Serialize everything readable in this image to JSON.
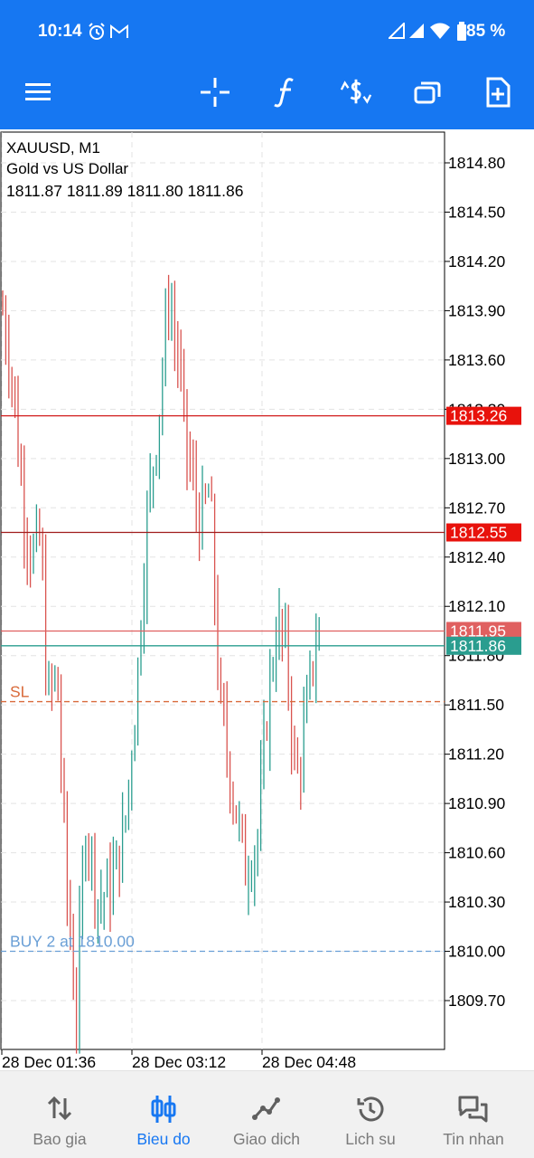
{
  "status_bar": {
    "time": "10:14",
    "battery": "85 %",
    "icons": [
      "alarm-icon",
      "gmail-icon",
      "signal-icon",
      "signal-icon",
      "wifi-icon",
      "battery-icon"
    ]
  },
  "toolbar": {
    "icons": [
      "menu-icon",
      "crosshair-icon",
      "function-icon",
      "trade-dollar-icon",
      "windows-icon",
      "new-document-icon"
    ],
    "color": "#1677f2"
  },
  "chart": {
    "symbol_line": "XAUUSD, M1",
    "description": "Gold vs US Dollar",
    "ohlc": "1811.87 1811.89 1811.80 1811.86",
    "sl_label": "SL",
    "buy_label": "BUY 2 at 1810.00",
    "badges": {
      "red_high": "1813.26",
      "red_mid": "1812.55",
      "ask": "1811.95",
      "bid": "1811.86"
    }
  },
  "chart_data": {
    "type": "candlestick",
    "symbol": "XAUUSD",
    "timeframe": "M1",
    "y_ticks": [
      "1814.80",
      "1814.50",
      "1814.20",
      "1813.90",
      "1813.60",
      "1813.30",
      "1813.00",
      "1812.70",
      "1812.40",
      "1812.10",
      "1811.80",
      "1811.50",
      "1811.20",
      "1810.90",
      "1810.60",
      "1810.30",
      "1810.00",
      "1809.70"
    ],
    "y_tick_values": [
      1814.8,
      1814.5,
      1814.2,
      1813.9,
      1813.6,
      1813.3,
      1813.0,
      1812.7,
      1812.4,
      1812.1,
      1811.8,
      1811.5,
      1811.2,
      1810.9,
      1810.6,
      1810.3,
      1810.0,
      1809.7
    ],
    "x_ticks": [
      "28 Dec 01:36",
      "28 Dec 03:12",
      "28 Dec 04:48"
    ],
    "ylim": [
      1809.45,
      1815.0
    ],
    "grid": true,
    "horizontal_lines": [
      {
        "value": 1813.26,
        "style": "solid",
        "color": "#d21c1c",
        "label": "1813.26"
      },
      {
        "value": 1812.55,
        "style": "solid",
        "color": "#a01c1c",
        "label": "1812.55"
      },
      {
        "value": 1811.95,
        "style": "solid",
        "color": "#e06060",
        "label": "1811.95"
      },
      {
        "value": 1811.86,
        "style": "solid",
        "color": "#2a9d8f",
        "label": "1811.86"
      },
      {
        "value": 1811.52,
        "style": "dashed",
        "color": "#d96a3a",
        "label": "SL"
      },
      {
        "value": 1810.0,
        "style": "dashed",
        "color": "#6a9fd6",
        "label": "BUY 2 at 1810.00"
      }
    ],
    "price_path": [
      [
        0,
        1813.9
      ],
      [
        0.03,
        1813.5
      ],
      [
        0.06,
        1812.8
      ],
      [
        0.09,
        1812.4
      ],
      [
        0.12,
        1812.5
      ],
      [
        0.14,
        1811.5
      ],
      [
        0.17,
        1811.7
      ],
      [
        0.2,
        1810.4
      ],
      [
        0.23,
        1809.6
      ],
      [
        0.26,
        1810.8
      ],
      [
        0.3,
        1810.3
      ],
      [
        0.34,
        1810.4
      ],
      [
        0.38,
        1810.7
      ],
      [
        0.42,
        1811.6
      ],
      [
        0.45,
        1812.6
      ],
      [
        0.49,
        1813.3
      ],
      [
        0.52,
        1814.0
      ],
      [
        0.55,
        1813.6
      ],
      [
        0.58,
        1813.0
      ],
      [
        0.62,
        1812.6
      ],
      [
        0.65,
        1812.8
      ],
      [
        0.68,
        1811.5
      ],
      [
        0.72,
        1811.0
      ],
      [
        0.76,
        1810.5
      ],
      [
        0.8,
        1810.7
      ],
      [
        0.83,
        1811.5
      ],
      [
        0.86,
        1812.0
      ],
      [
        0.89,
        1811.8
      ],
      [
        0.92,
        1811.0
      ],
      [
        0.95,
        1811.4
      ],
      [
        0.98,
        1811.9
      ],
      [
        1.0,
        1811.86
      ]
    ],
    "colors": {
      "bull": "#2a9d8f",
      "bear": "#d9534f"
    }
  },
  "bottom_nav": [
    {
      "label": "Bao gia",
      "icon": "quotes-arrows-icon",
      "active": false
    },
    {
      "label": "Bieu do",
      "icon": "chart-candles-icon",
      "active": true
    },
    {
      "label": "Giao dich",
      "icon": "trade-line-icon",
      "active": false
    },
    {
      "label": "Lich su",
      "icon": "history-icon",
      "active": false
    },
    {
      "label": "Tin nhan",
      "icon": "messages-icon",
      "active": false
    }
  ]
}
